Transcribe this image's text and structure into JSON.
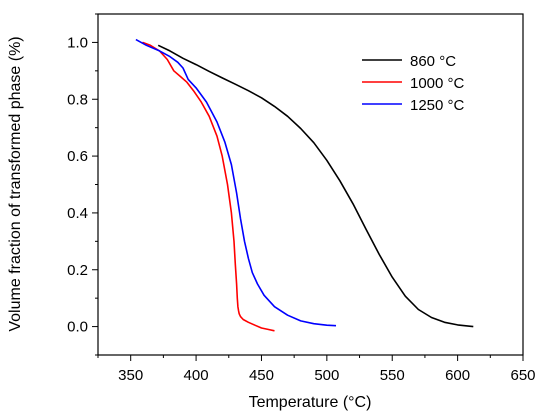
{
  "chart_data": {
    "type": "line",
    "title": "",
    "xlabel": "Temperature (°C)",
    "ylabel": "Volume fraction of transformed phase (%)",
    "xlim": [
      325,
      650
    ],
    "ylim": [
      -0.1,
      1.1
    ],
    "x_ticks": [
      "350",
      "400",
      "450",
      "500",
      "550",
      "600",
      "650"
    ],
    "y_ticks": [
      "0.0",
      "0.2",
      "0.4",
      "0.6",
      "0.8",
      "1.0"
    ],
    "x_tick_values": [
      350,
      400,
      450,
      500,
      550,
      600,
      650
    ],
    "y_tick_values": [
      0.0,
      0.2,
      0.4,
      0.6,
      0.8,
      1.0
    ],
    "grid": false,
    "legend_position": "top-right",
    "series": [
      {
        "name": "860 °C",
        "color": "#000000",
        "x": [
          371,
          380,
          390,
          400,
          410,
          420,
          430,
          440,
          450,
          460,
          470,
          480,
          490,
          500,
          510,
          520,
          530,
          540,
          550,
          560,
          570,
          580,
          590,
          600,
          610,
          612
        ],
        "y": [
          0.99,
          0.97,
          0.944,
          0.922,
          0.898,
          0.875,
          0.853,
          0.83,
          0.805,
          0.775,
          0.74,
          0.697,
          0.647,
          0.585,
          0.513,
          0.432,
          0.342,
          0.254,
          0.174,
          0.107,
          0.06,
          0.032,
          0.015,
          0.006,
          0.001,
          0.0
        ]
      },
      {
        "name": "1000 °C",
        "color": "#ff0000",
        "x": [
          359,
          365,
          372,
          378,
          383,
          388,
          393,
          398,
          404,
          410,
          416,
          420,
          424,
          427,
          429,
          430,
          431,
          431.5,
          432,
          432.5,
          433,
          434,
          436,
          440,
          445,
          450,
          455,
          460
        ],
        "y": [
          1.0,
          0.99,
          0.97,
          0.94,
          0.9,
          0.88,
          0.86,
          0.83,
          0.79,
          0.74,
          0.67,
          0.6,
          0.5,
          0.4,
          0.3,
          0.22,
          0.15,
          0.1,
          0.07,
          0.055,
          0.045,
          0.035,
          0.025,
          0.015,
          0.005,
          -0.005,
          -0.01,
          -0.015
        ]
      },
      {
        "name": "1250 °C",
        "color": "#0000ff",
        "x": [
          354,
          362,
          372,
          380,
          386,
          390,
          394,
          400,
          408,
          416,
          422,
          427,
          431,
          434,
          437,
          440,
          443,
          447,
          452,
          460,
          470,
          480,
          490,
          500,
          507
        ],
        "y": [
          1.01,
          0.99,
          0.97,
          0.95,
          0.93,
          0.91,
          0.87,
          0.84,
          0.79,
          0.72,
          0.65,
          0.57,
          0.47,
          0.38,
          0.3,
          0.24,
          0.19,
          0.15,
          0.11,
          0.07,
          0.04,
          0.02,
          0.01,
          0.005,
          0.003
        ]
      }
    ]
  }
}
